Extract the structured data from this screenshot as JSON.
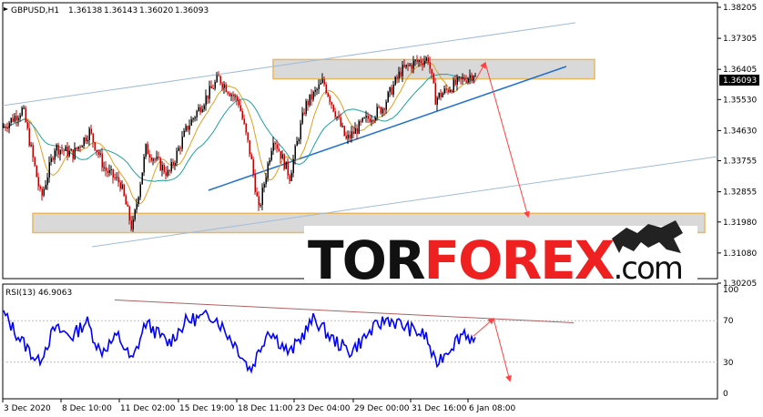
{
  "chart_data": [
    {
      "type": "candlestick",
      "symbol": "GBPUSD,H1",
      "ohlc": {
        "open": "1.36138",
        "high": "1.36143",
        "low": "1.36020",
        "close": "1.36093"
      },
      "current_price": "1.36093",
      "y_ticks": [
        "1.38205",
        "1.37305",
        "1.36405",
        "1.35530",
        "1.34630",
        "1.33755",
        "1.32855",
        "1.31980",
        "1.31080",
        "1.30205"
      ],
      "ylim": [
        1.30205,
        1.38205
      ],
      "x_ticks": [
        "3 Dec 2020",
        "8 Dec 10:00",
        "11 Dec 02:00",
        "15 Dec 19:00",
        "18 Dec 11:00",
        "23 Dec 04:00",
        "29 Dec 00:00",
        "31 Dec 16:00",
        "6 Jan 08:00"
      ],
      "resistance_zone": [
        1.3613,
        1.3669
      ],
      "support_zone": [
        1.3167,
        1.3223
      ],
      "colors": {
        "bull": "#000000",
        "bear": "#c00000",
        "ma_fast": "#e0a020",
        "ma_slow": "#20a0a0",
        "channel": "#a0bcd8",
        "trendline": "#2070d0",
        "zone_fill": "#d9d9d9",
        "zone_border": "#e8b860",
        "arrow": "#ff4040"
      }
    },
    {
      "type": "line",
      "indicator": "RSI(13) 46.9063",
      "y_ticks": [
        "100",
        "70",
        "30",
        "0"
      ],
      "ylim": [
        0,
        100
      ],
      "colors": {
        "line": "#0000ff",
        "trendline": "#b06060"
      }
    }
  ],
  "watermark": {
    "brand": "TORFOREX.com"
  }
}
